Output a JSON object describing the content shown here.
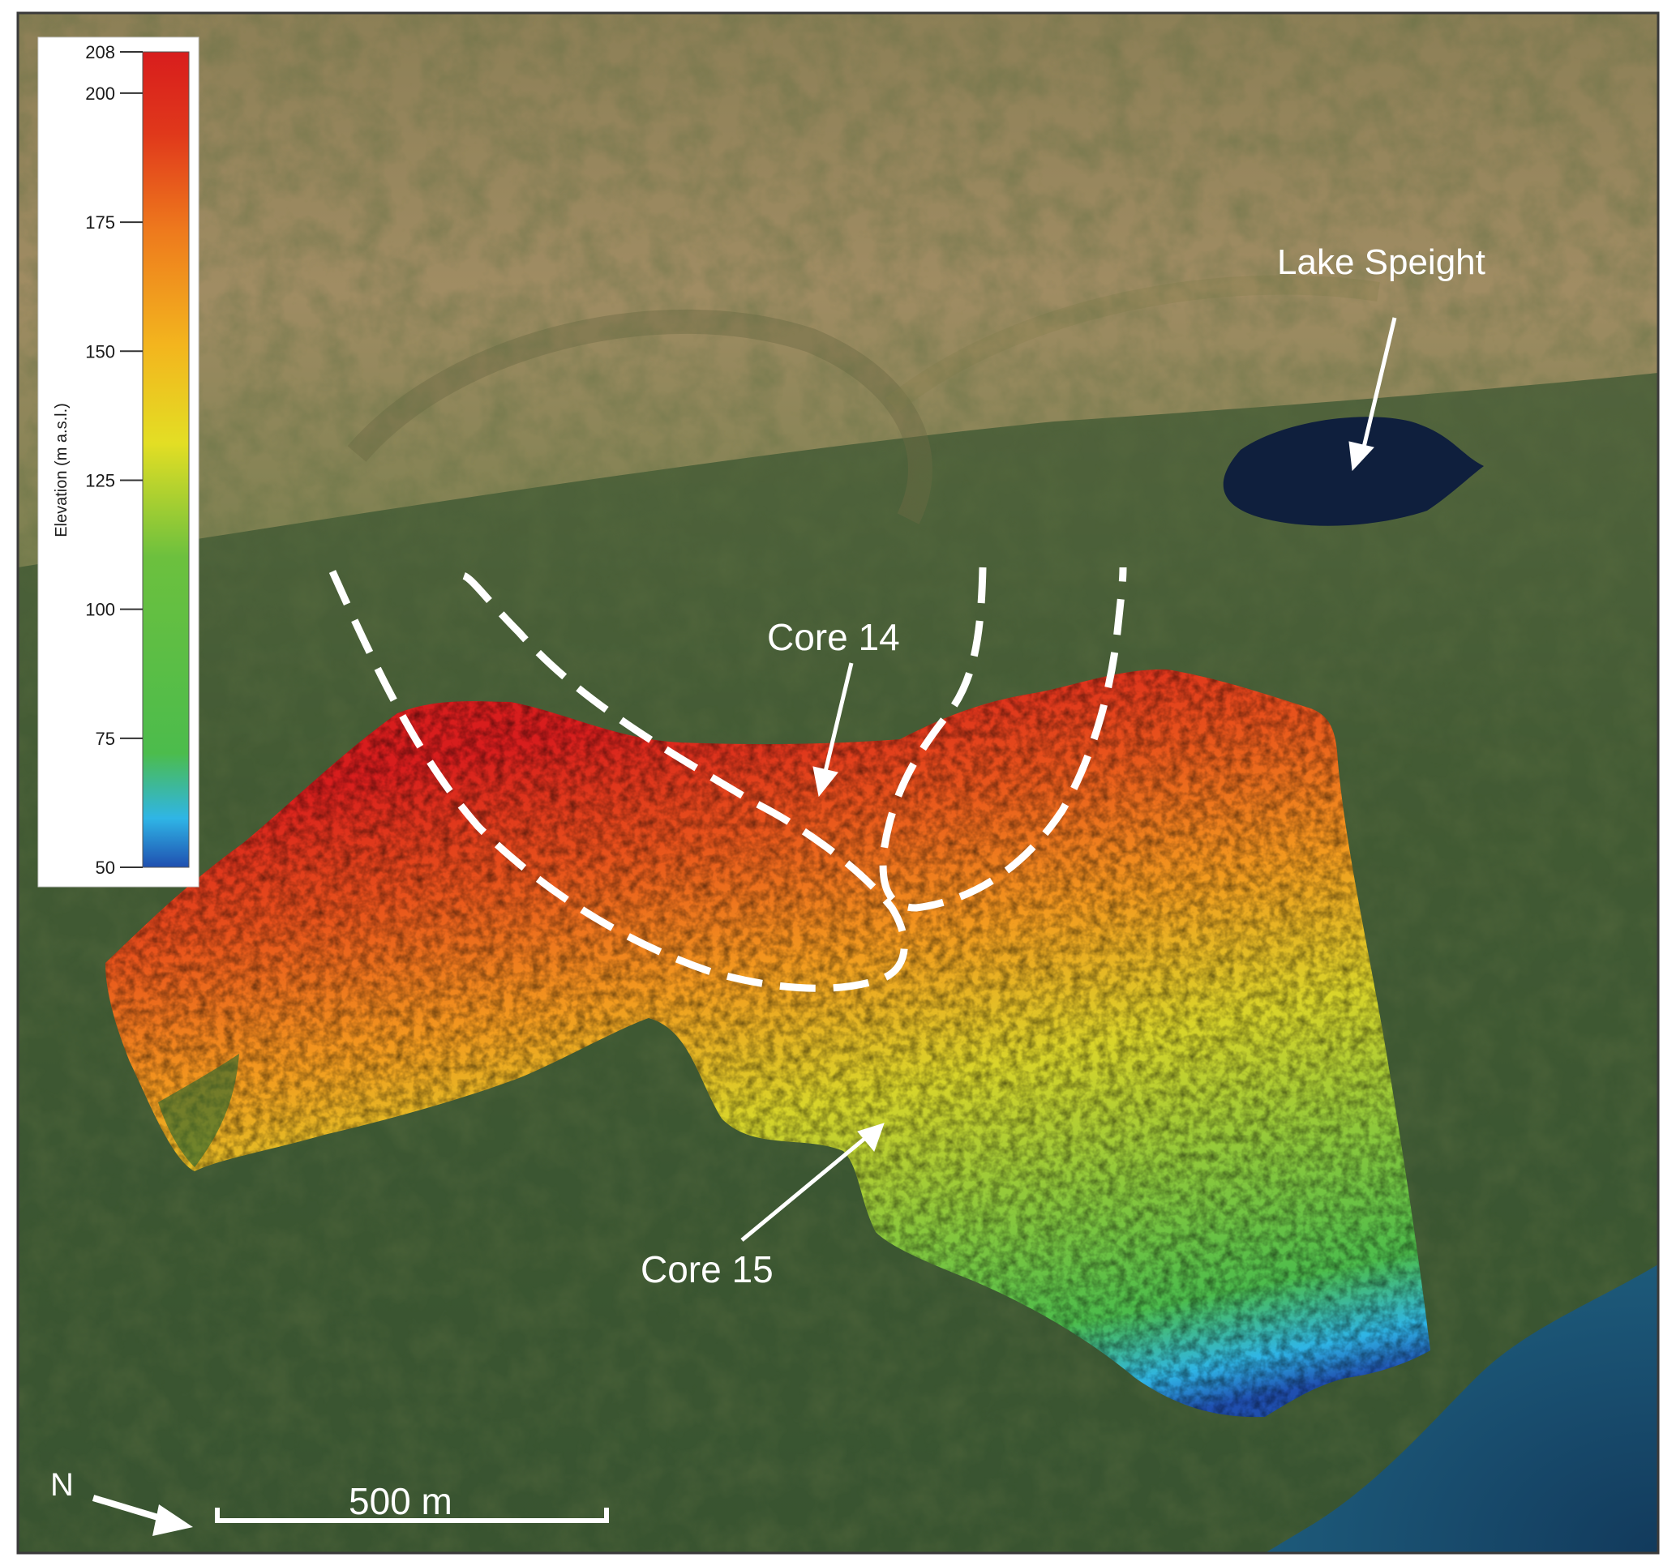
{
  "legend": {
    "title": "Elevation (m a.s.l.)",
    "min": 50,
    "max": 208,
    "ticks": [
      208,
      200,
      175,
      150,
      125,
      100,
      75,
      50
    ],
    "colors": [
      "#1f4fb0",
      "#2fb5e6",
      "#4cbc4c",
      "#c9d62e",
      "#f0d21c",
      "#f39a1f",
      "#e8521c",
      "#d81d1d"
    ]
  },
  "annotations": {
    "lake": "Lake Speight",
    "core14": "Core 14",
    "core15": "Core 15"
  },
  "north_label": "N",
  "scale_bar": {
    "label": "500 m",
    "length_m": 500
  }
}
